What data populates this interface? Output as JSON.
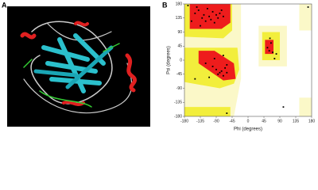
{
  "panels": {
    "a_label": "A",
    "b_label": "B"
  },
  "chart_data": {
    "type": "scatter",
    "x_label": "Phi (degrees)",
    "y_label": "Psi (degrees)",
    "xlim": [
      -180,
      180
    ],
    "ylim": [
      -180,
      180
    ],
    "xticks": [
      -180,
      -135,
      -90,
      -45,
      0,
      45,
      90,
      135,
      180
    ],
    "yticks": [
      -180,
      -135,
      -90,
      -45,
      0,
      45,
      90,
      135,
      180
    ],
    "color": "#000000",
    "x": [
      -150,
      -140,
      -130,
      -125,
      -120,
      -115,
      -110,
      -105,
      -100,
      -95,
      -90,
      -85,
      -80,
      -75,
      -70,
      -135,
      -145,
      -160,
      -120,
      -100,
      -90,
      -85,
      -80,
      -75,
      -70,
      -65,
      -60,
      -95,
      -110,
      -70,
      -60,
      55,
      60,
      65,
      70,
      62,
      80,
      75,
      -170,
      170,
      -60,
      -150,
      100
    ],
    "values": [
      150,
      160,
      135,
      145,
      125,
      165,
      140,
      130,
      155,
      120,
      145,
      135,
      150,
      160,
      140,
      110,
      170,
      125,
      -10,
      -20,
      -30,
      -45,
      -40,
      -35,
      -50,
      -25,
      -40,
      5,
      -55,
      15,
      -15,
      40,
      30,
      55,
      25,
      70,
      20,
      5,
      175,
      170,
      -170,
      -60,
      -150
    ]
  }
}
